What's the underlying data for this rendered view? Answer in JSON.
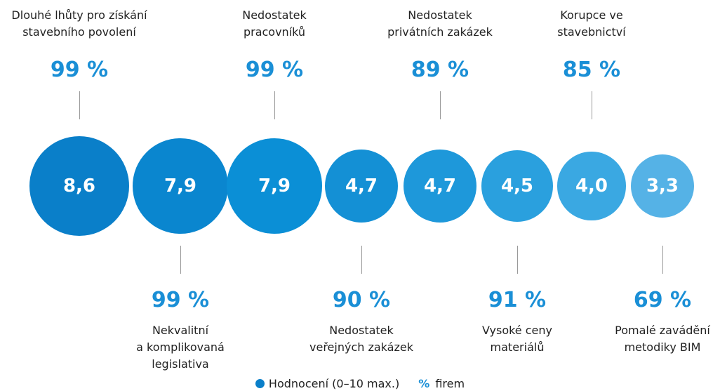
{
  "chart_data": {
    "type": "bubble",
    "categories": [
      "Dlouhé lhůty pro získání\nstavebního povolení",
      "Nekvalitní\na komplikovaná\nlegislativa",
      "Nedostatek\npracovníků",
      "Nedostatek\nveřejných zakázek",
      "Nedostatek\nprivátních zakázek",
      "Vysoké ceny\nmateriálů",
      "Korupce ve\nstavebnictví",
      "Pomalé zavádění\nmetodiky BIM"
    ],
    "values": [
      8.6,
      7.9,
      7.9,
      4.7,
      4.7,
      4.5,
      4.0,
      3.3
    ],
    "value_labels": [
      "8,6",
      "7,9",
      "7,9",
      "4,7",
      "4,7",
      "4,5",
      "4,0",
      "3,3"
    ],
    "percent": [
      99,
      99,
      99,
      90,
      89,
      91,
      85,
      69
    ],
    "percent_labels": [
      "99 %",
      "99 %",
      "99 %",
      "90 %",
      "89 %",
      "91 %",
      "85 %",
      "69 %"
    ],
    "colors": [
      "#0a7fc9",
      "#0a86cf",
      "#0b8fd6",
      "#1490d5",
      "#1e98da",
      "#2aa0de",
      "#3aa8e2",
      "#55b2e6"
    ],
    "percent_color": "#1a8fd6",
    "legend": {
      "rating": "Hodnocení (0–10 max.)",
      "percent_symbol": "%",
      "percent_text": "firem"
    }
  }
}
